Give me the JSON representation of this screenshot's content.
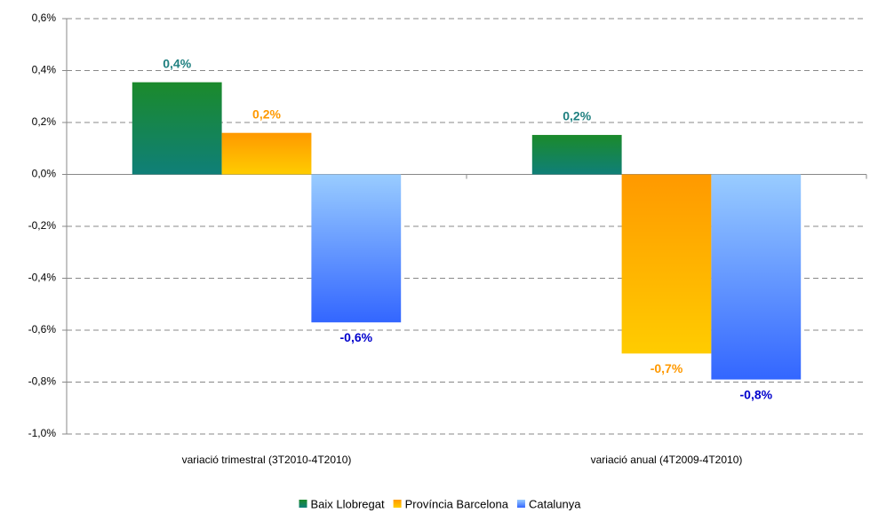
{
  "chart_data": {
    "type": "bar",
    "categories": [
      "variació trimestral (3T2010-4T2010)",
      "variació anual (4T2009-4T2010)"
    ],
    "series": [
      {
        "name": "Baix Llobregat",
        "colors": [
          "#1b8a2b",
          "#0f7f78"
        ],
        "label_color": "#1f8080",
        "values": [
          0.355,
          0.152
        ],
        "value_labels": [
          "0,4%",
          "0,2%"
        ]
      },
      {
        "name": "Província Barcelona",
        "colors": [
          "#ff9900",
          "#ffcc00"
        ],
        "label_color": "#ff9900",
        "values": [
          0.16,
          -0.69
        ],
        "value_labels": [
          "0,2%",
          "-0,7%"
        ]
      },
      {
        "name": "Catalunya",
        "colors": [
          "#99ccff",
          "#3366ff"
        ],
        "label_color": "#0000cc",
        "values": [
          -0.57,
          -0.79
        ],
        "value_labels": [
          "-0,6%",
          "-0,8%"
        ]
      }
    ],
    "ylim": [
      -1.0,
      0.6
    ],
    "yticks": [
      {
        "value": -1.0,
        "label": "-1,0%"
      },
      {
        "value": -0.8,
        "label": "-0,8%"
      },
      {
        "value": -0.6,
        "label": "-0,6%"
      },
      {
        "value": -0.4,
        "label": "-0,4%"
      },
      {
        "value": -0.2,
        "label": "-0,2%"
      },
      {
        "value": 0.0,
        "label": "0,0%"
      },
      {
        "value": 0.2,
        "label": "0,2%"
      },
      {
        "value": 0.4,
        "label": "0,4%"
      },
      {
        "value": 0.6,
        "label": "0,6%"
      }
    ],
    "grid": true,
    "legend": "bottom"
  }
}
